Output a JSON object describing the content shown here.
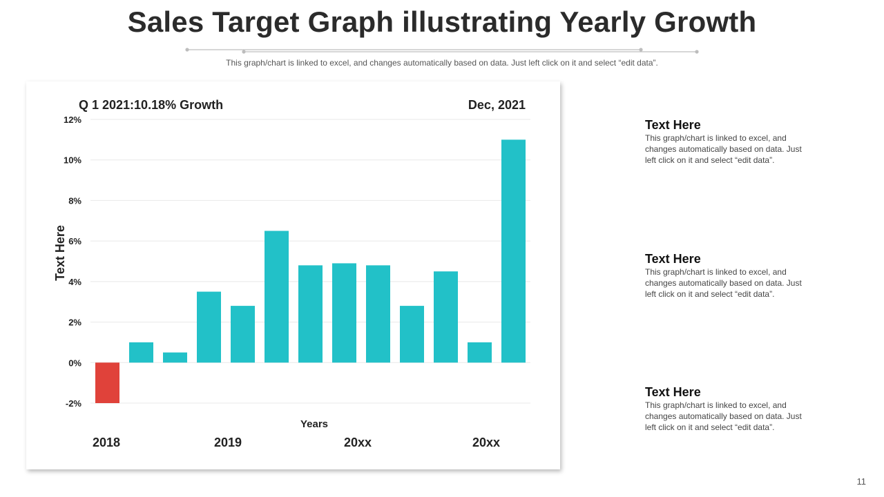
{
  "slide": {
    "title": "Sales Target Graph illustrating Yearly Growth",
    "subtitle": "This graph/chart is linked to excel, and changes automatically based on data. Just left click on it and select “edit data”.",
    "page_number": "11"
  },
  "chart_header": {
    "left": "Q 1 2021:10.18% Growth",
    "right": "Dec, 2021"
  },
  "chart_data": {
    "type": "bar",
    "title": "",
    "xlabel": "Years",
    "ylabel": "Text Here",
    "ylim": [
      -2,
      12
    ],
    "yticks": [
      -2,
      0,
      2,
      4,
      6,
      8,
      10,
      12
    ],
    "ytick_labels": [
      "-2%",
      "0%",
      "2%",
      "4%",
      "6%",
      "8%",
      "10%",
      "12%"
    ],
    "values": [
      -2.0,
      1.0,
      0.5,
      3.5,
      2.8,
      6.5,
      4.8,
      4.9,
      4.8,
      2.8,
      4.5,
      1.0,
      11.0
    ],
    "bar_colors": [
      "#e0423a",
      "#22c1c8",
      "#22c1c8",
      "#22c1c8",
      "#22c1c8",
      "#22c1c8",
      "#22c1c8",
      "#22c1c8",
      "#22c1c8",
      "#22c1c8",
      "#22c1c8",
      "#22c1c8",
      "#22c1c8"
    ],
    "year_labels": [
      "2018",
      "2019",
      "20xx",
      "20xx"
    ],
    "grid": true,
    "legend": "none"
  },
  "colors": {
    "positive": "#22c1c8",
    "negative": "#e0423a",
    "gridline": "#e8e8e8"
  },
  "side_blocks": [
    {
      "title": "Text Here",
      "text": "This graph/chart is linked to excel, and changes automatically based on data. Just left click on it and select “edit data”."
    },
    {
      "title": "Text Here",
      "text": "This graph/chart is linked to excel, and changes automatically based on data. Just left click on it and select “edit data”."
    },
    {
      "title": "Text Here",
      "text": "This graph/chart is linked to excel, and changes automatically based on data. Just left click on it and select “edit data”."
    }
  ]
}
